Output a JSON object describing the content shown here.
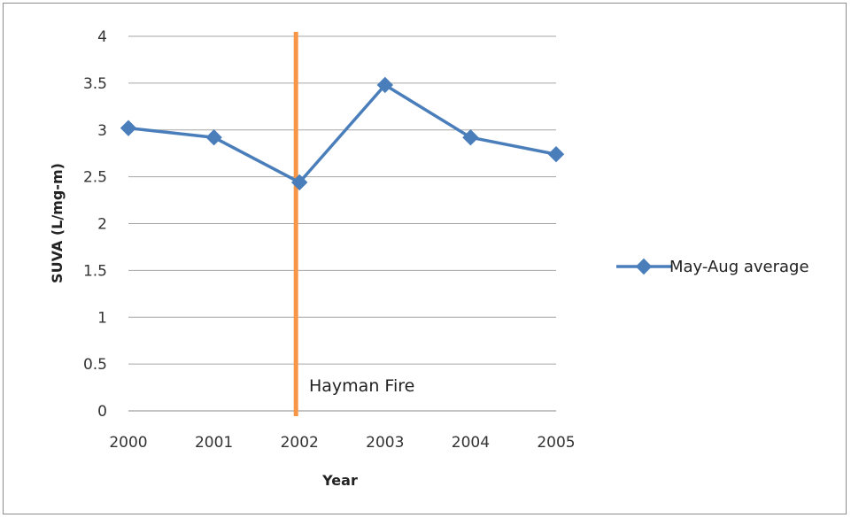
{
  "chart_data": {
    "type": "line",
    "title": "",
    "xlabel": "Year",
    "ylabel": "SUVA (L/mg-m)",
    "categories": [
      "2000",
      "2001",
      "2002",
      "2003",
      "2004",
      "2005"
    ],
    "yticks": [
      "0",
      "0.5",
      "1",
      "1.5",
      "2",
      "2.5",
      "3",
      "3.5",
      "4"
    ],
    "ylim": [
      0,
      4
    ],
    "grid": true,
    "legend_position": "right",
    "series": [
      {
        "name": "May-Aug average",
        "color": "#4a7ebb",
        "marker": "diamond",
        "values": [
          3.02,
          2.92,
          2.44,
          3.48,
          2.92,
          2.74
        ]
      }
    ],
    "annotations": [
      {
        "type": "vertical-line",
        "x": "2002",
        "color": "#f79646",
        "label": "Hayman Fire"
      }
    ]
  }
}
